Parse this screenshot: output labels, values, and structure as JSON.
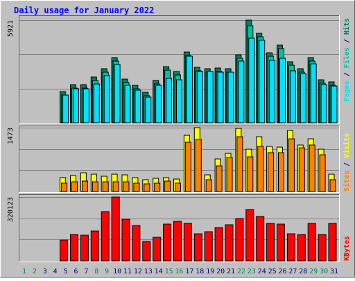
{
  "title": "Daily usage for January 2022",
  "categories": [
    "1",
    "2",
    "3",
    "4",
    "5",
    "6",
    "7",
    "8",
    "9",
    "10",
    "11",
    "12",
    "13",
    "14",
    "15",
    "16",
    "17",
    "18",
    "19",
    "20",
    "21",
    "22",
    "23",
    "24",
    "25",
    "26",
    "27",
    "28",
    "29",
    "30",
    "31"
  ],
  "category_colors": [
    "#00805c",
    "#00805c",
    "#000080",
    "#000080",
    "#000080",
    "#000080",
    "#000080",
    "#00805c",
    "#00805c",
    "#000080",
    "#000080",
    "#000080",
    "#000080",
    "#000080",
    "#00805c",
    "#00805c",
    "#000080",
    "#000080",
    "#000080",
    "#000080",
    "#000080",
    "#00805c",
    "#00805c",
    "#000080",
    "#000080",
    "#000080",
    "#000080",
    "#000080",
    "#00805c",
    "#00805c",
    "#000080"
  ],
  "legend_separator": " / ",
  "chart_data": [
    {
      "type": "bar",
      "ylim": [
        0,
        5921
      ],
      "yticks": [
        5921
      ],
      "series": [
        {
          "name": "Hits",
          "color": "#00805c",
          "values": [
            0,
            0,
            0,
            0,
            1800,
            2200,
            2200,
            2640,
            3120,
            3760,
            2520,
            2160,
            1760,
            2440,
            3240,
            2960,
            4080,
            3200,
            3120,
            3160,
            3120,
            3920,
            5921,
            5160,
            4040,
            4480,
            3520,
            3120,
            3760,
            2480,
            2360
          ]
        },
        {
          "name": "Files",
          "color": "#00c0a0",
          "values": [
            0,
            0,
            0,
            0,
            1600,
            2000,
            2000,
            2440,
            2920,
            3560,
            2320,
            1960,
            1560,
            2240,
            3040,
            2760,
            3880,
            3000,
            2920,
            2960,
            2920,
            3720,
            5600,
            4960,
            3840,
            4280,
            3320,
            2920,
            3560,
            2280,
            2160
          ]
        },
        {
          "name": "Pages",
          "color": "#00e0ff",
          "values": [
            0,
            0,
            0,
            0,
            1600,
            1960,
            1960,
            2240,
            2720,
            3360,
            2160,
            1880,
            1480,
            2160,
            2560,
            2480,
            3840,
            2960,
            2960,
            2920,
            2920,
            3560,
            4880,
            4760,
            3600,
            3720,
            3000,
            2840,
            3400,
            2200,
            2120
          ]
        }
      ]
    },
    {
      "type": "bar",
      "ylim": [
        0,
        1473
      ],
      "yticks": [
        1473
      ],
      "series": [
        {
          "name": "Visits",
          "color": "#ffff00",
          "values": [
            0,
            0,
            0,
            0,
            320,
            368,
            432,
            400,
            352,
            400,
            384,
            320,
            272,
            304,
            320,
            288,
            1296,
            1473,
            384,
            752,
            880,
            1456,
            976,
            1264,
            1040,
            1024,
            1408,
            1072,
            1216,
            976,
            400
          ]
        },
        {
          "name": "Sites",
          "color": "#ff8000",
          "values": [
            0,
            0,
            0,
            0,
            192,
            224,
            240,
            224,
            224,
            224,
            224,
            192,
            176,
            192,
            240,
            192,
            1136,
            1200,
            272,
            592,
            784,
            1264,
            800,
            1040,
            896,
            896,
            1216,
            1008,
            1072,
            848,
            272
          ]
        }
      ]
    },
    {
      "type": "bar",
      "ylim": [
        0,
        320123
      ],
      "yticks": [
        320123
      ],
      "series": [
        {
          "name": "KBytes",
          "color": "#ff0000",
          "values": [
            0,
            0,
            0,
            0,
            104400,
            132240,
            128760,
            149640,
            247080,
            320123,
            208800,
            177480,
            97440,
            118320,
            184440,
            198360,
            187920,
            135720,
            146160,
            167040,
            180960,
            212280,
            257520,
            222720,
            187920,
            184440,
            135720,
            132240,
            187920,
            132240,
            187920
          ]
        }
      ]
    }
  ]
}
